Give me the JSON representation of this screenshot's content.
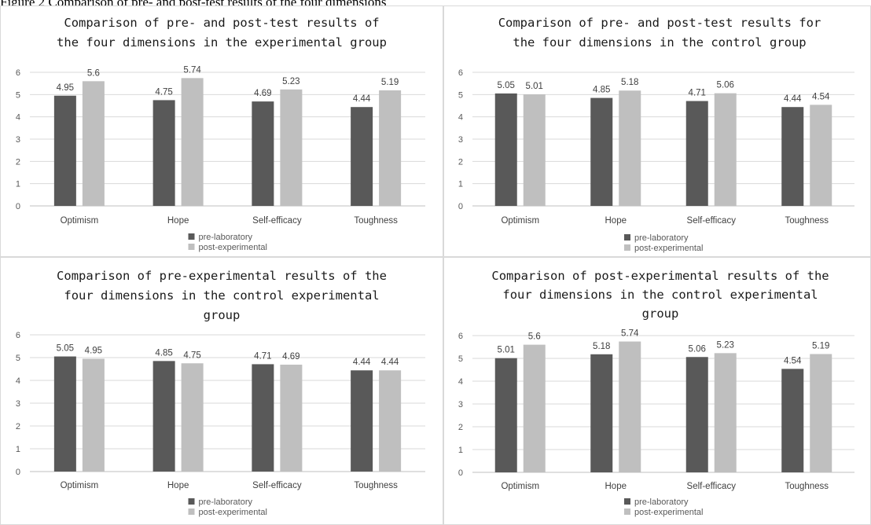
{
  "header": {
    "caption": "Figure 2 Comparison of pre- and post-test results of the four dimensions"
  },
  "colors": {
    "pre": "#595959",
    "post": "#bfbfbf",
    "grid": "#d9d9d9"
  },
  "chart_data": [
    {
      "type": "bar",
      "title": [
        "Comparison of pre- and post-test results of",
        "the four dimensions in the experimental group"
      ],
      "categories": [
        "Optimism",
        "Hope",
        "Self-efficacy",
        "Toughness"
      ],
      "series": [
        {
          "name": "pre-laboratory",
          "values": [
            4.95,
            4.75,
            4.69,
            4.44
          ]
        },
        {
          "name": "post-experimental",
          "values": [
            5.6,
            5.74,
            5.23,
            5.19
          ]
        }
      ],
      "ylim": [
        0,
        6
      ],
      "yticks": [
        0,
        1,
        2,
        3,
        4,
        5,
        6
      ],
      "grid": true,
      "legend": "bottom"
    },
    {
      "type": "bar",
      "title": [
        "Comparison of pre- and post-test results for",
        "the four dimensions in the control group"
      ],
      "categories": [
        "Optimism",
        "Hope",
        "Self-efficacy",
        "Toughness"
      ],
      "series": [
        {
          "name": "pre-laboratory",
          "values": [
            5.05,
            4.85,
            4.71,
            4.44
          ]
        },
        {
          "name": "post-experimental",
          "values": [
            5.01,
            5.18,
            5.06,
            4.54
          ]
        }
      ],
      "ylim": [
        0,
        6
      ],
      "yticks": [
        0,
        1,
        2,
        3,
        4,
        5,
        6
      ],
      "grid": true,
      "legend": "bottom"
    },
    {
      "type": "bar",
      "title": [
        "Comparison of pre-experimental results of the",
        "four dimensions in the control experimental",
        "group"
      ],
      "categories": [
        "Optimism",
        "Hope",
        "Self-efficacy",
        "Toughness"
      ],
      "series": [
        {
          "name": "pre-laboratory",
          "values": [
            5.05,
            4.85,
            4.71,
            4.44
          ]
        },
        {
          "name": "post-experimental",
          "values": [
            4.95,
            4.75,
            4.69,
            4.44
          ]
        }
      ],
      "ylim": [
        0,
        6
      ],
      "yticks": [
        0,
        1,
        2,
        3,
        4,
        5,
        6
      ],
      "grid": true,
      "legend": "bottom"
    },
    {
      "type": "bar",
      "title": [
        "Comparison of post-experimental results of the",
        "four dimensions in the control experimental",
        "group"
      ],
      "categories": [
        "Optimism",
        "Hope",
        "Self-efficacy",
        "Toughness"
      ],
      "series": [
        {
          "name": "pre-laboratory",
          "values": [
            5.01,
            5.18,
            5.06,
            4.54
          ]
        },
        {
          "name": "post-experimental",
          "values": [
            5.6,
            5.74,
            5.23,
            5.19
          ]
        }
      ],
      "ylim": [
        0,
        6
      ],
      "yticks": [
        0,
        1,
        2,
        3,
        4,
        5,
        6
      ],
      "grid": true,
      "legend": "bottom"
    }
  ]
}
